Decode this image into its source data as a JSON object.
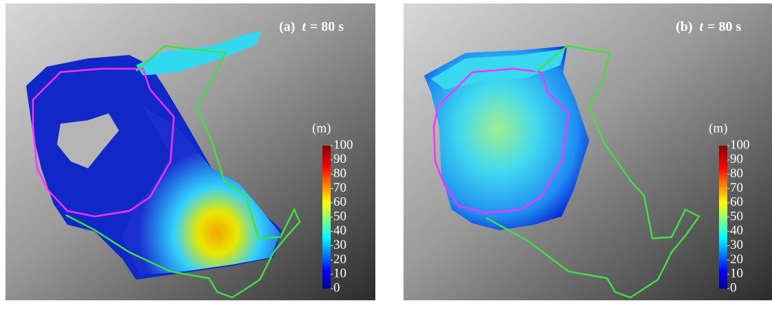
{
  "panels": [
    {
      "label": "(a)",
      "variable": "t",
      "equation": "= 80 s",
      "colorbar": {
        "unit": "(m)",
        "ticks": [
          0,
          10,
          20,
          30,
          40,
          50,
          60,
          70,
          80,
          90,
          100
        ]
      }
    },
    {
      "label": "(b)",
      "variable": "t",
      "equation": "= 80 s",
      "colorbar": {
        "unit": "(m)",
        "ticks": [
          0,
          10,
          20,
          30,
          40,
          50,
          60,
          70,
          80,
          90,
          100
        ]
      }
    }
  ]
}
